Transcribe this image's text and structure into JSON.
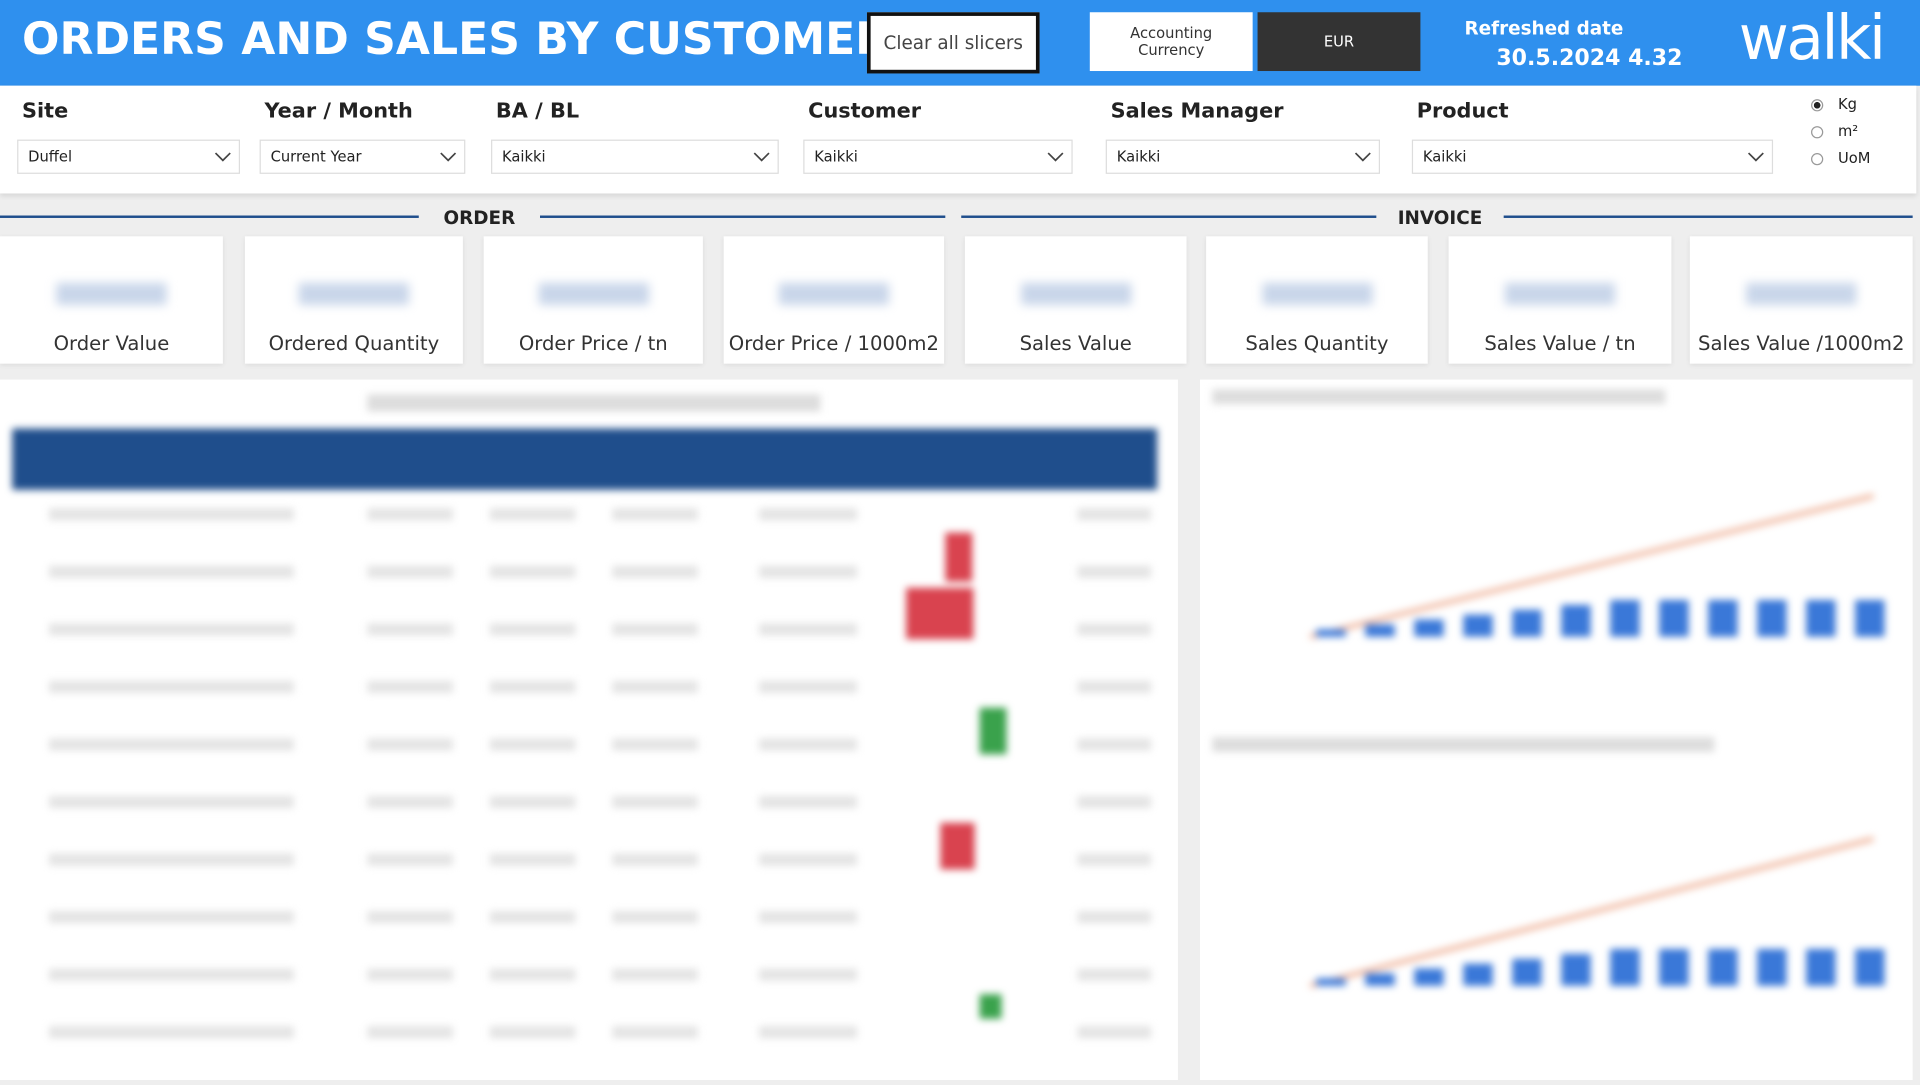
{
  "header": {
    "title": "ORDERS AND SALES BY CUSTOMER",
    "clear_button": "Clear all slicers",
    "currency_label": "Accounting Currency",
    "currency_value": "EUR",
    "refreshed_label": "Refreshed date",
    "refreshed_value": "30.5.2024 4.32",
    "logo": "walki"
  },
  "filters": [
    {
      "label": "Site",
      "value": "Duffel"
    },
    {
      "label": "Year / Month",
      "value": "Current Year"
    },
    {
      "label": "BA / BL",
      "value": "Kaikki"
    },
    {
      "label": "Customer",
      "value": "Kaikki"
    },
    {
      "label": "Sales Manager",
      "value": "Kaikki"
    },
    {
      "label": "Product",
      "value": "Kaikki"
    }
  ],
  "units": {
    "options": [
      "Kg",
      "m²",
      "UoM"
    ],
    "selected": 0
  },
  "sections": [
    "ORDER",
    "INVOICE"
  ],
  "kpis": [
    "Order Value",
    "Ordered Quantity",
    "Order Price / tn",
    "Order Price / 1000m2",
    "Sales Value",
    "Sales Quantity",
    "Sales Value / tn",
    "Sales Value /1000m2"
  ]
}
